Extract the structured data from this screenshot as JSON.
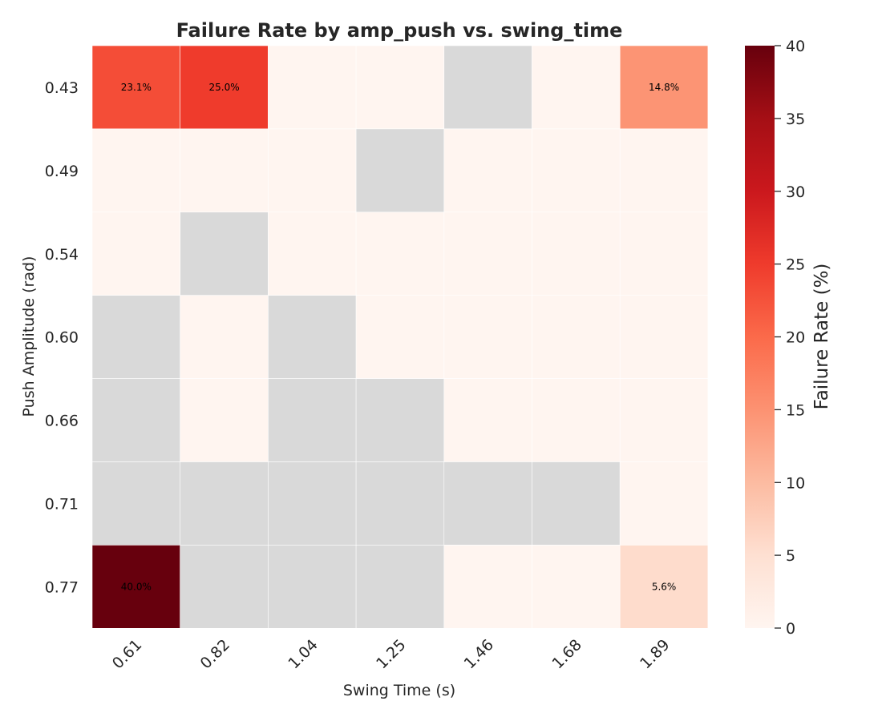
{
  "chart_data": {
    "type": "heatmap",
    "title": "Failure Rate by amp_push vs. swing_time",
    "xlabel": "Swing Time (s)",
    "ylabel": "Push Amplitude (rad)",
    "x_categories": [
      "0.61",
      "0.82",
      "1.04",
      "1.25",
      "1.46",
      "1.68",
      "1.89"
    ],
    "y_categories": [
      "0.43",
      "0.49",
      "0.54",
      "0.60",
      "0.66",
      "0.71",
      "0.77"
    ],
    "values": [
      [
        23.1,
        25.0,
        0,
        0,
        null,
        0,
        14.8
      ],
      [
        0,
        0,
        0,
        null,
        0,
        0,
        0
      ],
      [
        0,
        null,
        0,
        0,
        0,
        0,
        0
      ],
      [
        null,
        0,
        null,
        0,
        0,
        0,
        0
      ],
      [
        null,
        0,
        null,
        null,
        0,
        0,
        0
      ],
      [
        null,
        null,
        null,
        null,
        null,
        null,
        0
      ],
      [
        40.0,
        null,
        null,
        null,
        0,
        0,
        5.6
      ]
    ],
    "annotations": [
      [
        0,
        0,
        "23.1%"
      ],
      [
        0,
        1,
        "25.0%"
      ],
      [
        0,
        6,
        "14.8%"
      ],
      [
        6,
        0,
        "40.0%"
      ],
      [
        6,
        6,
        "5.6%"
      ]
    ],
    "missing_color": "#d9d9d9",
    "colormap": "Reds",
    "colorbar": {
      "label": "Failure Rate (%)",
      "range": [
        0,
        40
      ],
      "ticks": [
        "0",
        "5",
        "10",
        "15",
        "20",
        "25",
        "30",
        "35",
        "40"
      ]
    },
    "grid": false
  }
}
